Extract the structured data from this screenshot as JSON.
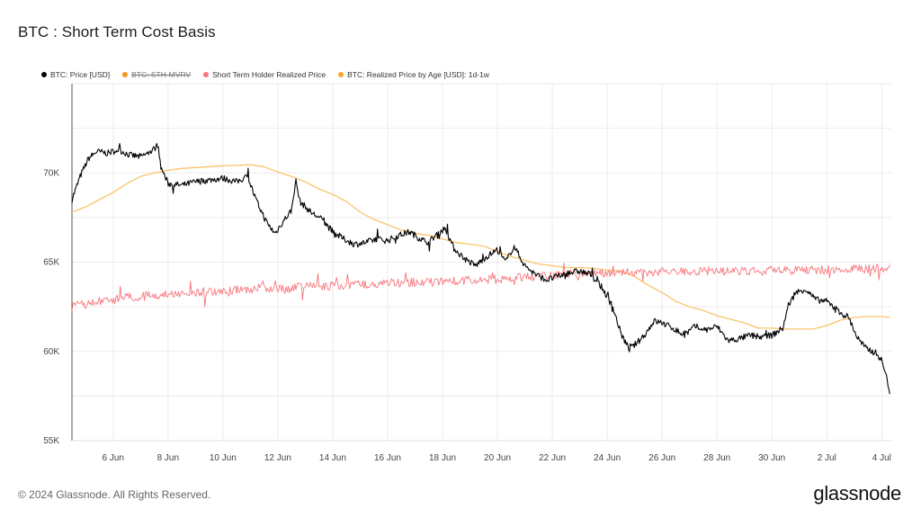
{
  "title": "BTC : Short Term Cost Basis",
  "footer": {
    "copyright": "© 2024 Glassnode. All Rights Reserved.",
    "brand": "glassnode"
  },
  "legend": [
    {
      "label": "BTC: Price [USD]",
      "color": "#000000",
      "disabled": false
    },
    {
      "label": "BTC: STH-MVRV",
      "color": "#f7931a",
      "disabled": true
    },
    {
      "label": "Short Term Holder Realized Price",
      "color": "#f8767d",
      "disabled": false
    },
    {
      "label": "BTC: Realized Price by Age [USD]: 1d-1w",
      "color": "#f9a825",
      "disabled": false
    }
  ],
  "chart_data": {
    "type": "line",
    "x_ticks": [
      "6 Jun",
      "8 Jun",
      "10 Jun",
      "12 Jun",
      "14 Jun",
      "16 Jun",
      "18 Jun",
      "20 Jun",
      "22 Jun",
      "24 Jun",
      "26 Jun",
      "28 Jun",
      "30 Jun",
      "2 Jul",
      "4 Jul"
    ],
    "x_tick_days": [
      6,
      8,
      10,
      12,
      14,
      16,
      18,
      20,
      22,
      24,
      26,
      28,
      30,
      32,
      34
    ],
    "x_range_days": [
      4.5,
      34.35
    ],
    "y_ticks": [
      {
        "value": 55000,
        "label": "55K"
      },
      {
        "value": 60000,
        "label": "60K"
      },
      {
        "value": 65000,
        "label": "65K"
      },
      {
        "value": 70000,
        "label": "70K"
      }
    ],
    "ylim": [
      55000,
      75000
    ],
    "grid": true,
    "series": [
      {
        "name": "BTC: Price [USD]",
        "color": "#000000",
        "x": [
          4.5,
          4.8,
          5.1,
          5.4,
          5.8,
          6.2,
          6.6,
          7.0,
          7.4,
          7.65,
          7.72,
          8.0,
          8.5,
          9.0,
          9.5,
          10.0,
          10.5,
          10.9,
          11.2,
          11.6,
          11.9,
          12.2,
          12.5,
          12.65,
          12.8,
          13.2,
          13.6,
          14.0,
          14.4,
          14.8,
          15.2,
          15.6,
          16.0,
          16.4,
          16.8,
          17.2,
          17.5,
          17.8,
          18.1,
          18.4,
          18.8,
          19.2,
          19.6,
          20.0,
          20.3,
          20.6,
          21.0,
          21.4,
          21.8,
          22.2,
          22.6,
          23.0,
          23.4,
          23.8,
          24.2,
          24.5,
          24.8,
          25.1,
          25.4,
          25.7,
          26.0,
          26.4,
          26.8,
          27.2,
          27.6,
          28.0,
          28.4,
          28.8,
          29.2,
          29.6,
          30.0,
          30.4,
          30.6,
          30.9,
          31.2,
          31.6,
          32.0,
          32.4,
          32.8,
          33.1,
          33.4,
          33.8,
          34.0,
          34.15,
          34.3
        ],
        "values": [
          68500,
          69800,
          70800,
          71200,
          71100,
          71300,
          71000,
          70900,
          71200,
          71600,
          70400,
          69400,
          69300,
          69500,
          69600,
          69700,
          69500,
          69800,
          68500,
          67200,
          66600,
          67300,
          67900,
          69600,
          68400,
          67800,
          67400,
          66700,
          66300,
          66000,
          66100,
          66300,
          66200,
          66500,
          66700,
          66300,
          66100,
          66600,
          66900,
          65800,
          65200,
          64800,
          65300,
          65700,
          65000,
          65900,
          64800,
          64300,
          64000,
          64200,
          64400,
          64500,
          64300,
          63600,
          62500,
          61000,
          60100,
          60500,
          61000,
          61700,
          61600,
          61300,
          60900,
          61400,
          61200,
          61400,
          60600,
          60700,
          60900,
          60800,
          60900,
          61300,
          62600,
          63300,
          63500,
          62900,
          62800,
          62300,
          61900,
          60800,
          60200,
          59900,
          59500,
          58700,
          57700
        ]
      },
      {
        "name": "Short Term Holder Realized Price",
        "color": "#f8767d",
        "x": [
          4.5,
          5.5,
          6.5,
          7.5,
          8.5,
          9.5,
          10.5,
          11.5,
          12.5,
          13.5,
          14.5,
          15.5,
          16.5,
          17.5,
          18.5,
          19.5,
          20.5,
          21.5,
          22.5,
          23.5,
          24.5,
          25.5,
          26.5,
          27.5,
          28.5,
          29.5,
          30.5,
          31.5,
          32.5,
          33.5,
          34.3
        ],
        "values": [
          62500,
          62800,
          63000,
          63150,
          63250,
          63350,
          63450,
          63550,
          63600,
          63650,
          63700,
          63800,
          63850,
          63900,
          63950,
          64000,
          64100,
          64200,
          64300,
          64350,
          64400,
          64450,
          64450,
          64500,
          64500,
          64500,
          64550,
          64550,
          64600,
          64650,
          64700
        ]
      },
      {
        "name": "BTC: Realized Price by Age [USD]: 1d-1w",
        "color": "#f9c46b",
        "x": [
          4.5,
          5.0,
          5.5,
          6.0,
          6.5,
          7.0,
          7.5,
          8.0,
          8.5,
          9.0,
          9.5,
          10.0,
          10.5,
          11.0,
          11.5,
          12.0,
          12.5,
          13.0,
          13.5,
          14.0,
          14.5,
          15.0,
          15.5,
          16.0,
          16.5,
          17.0,
          17.5,
          18.0,
          18.5,
          19.0,
          19.5,
          20.0,
          20.5,
          21.0,
          21.5,
          22.0,
          22.5,
          23.0,
          23.5,
          24.0,
          24.5,
          25.0,
          25.5,
          26.0,
          26.5,
          27.0,
          27.5,
          28.0,
          28.5,
          29.0,
          29.5,
          30.0,
          30.5,
          31.0,
          31.5,
          32.0,
          32.5,
          33.0,
          33.5,
          34.0,
          34.3
        ],
        "values": [
          67800,
          68100,
          68500,
          68900,
          69400,
          69800,
          70000,
          70150,
          70250,
          70300,
          70350,
          70400,
          70420,
          70450,
          70350,
          70050,
          69800,
          69500,
          69100,
          68800,
          68400,
          67800,
          67400,
          67100,
          66800,
          66600,
          66500,
          66300,
          66100,
          66000,
          65900,
          65600,
          65300,
          65100,
          64900,
          64800,
          64700,
          64700,
          64650,
          64550,
          64500,
          64200,
          63700,
          63300,
          62800,
          62500,
          62300,
          62000,
          61800,
          61600,
          61300,
          61300,
          61250,
          61250,
          61250,
          61450,
          61750,
          61900,
          61950,
          61950,
          61900
        ]
      }
    ]
  }
}
